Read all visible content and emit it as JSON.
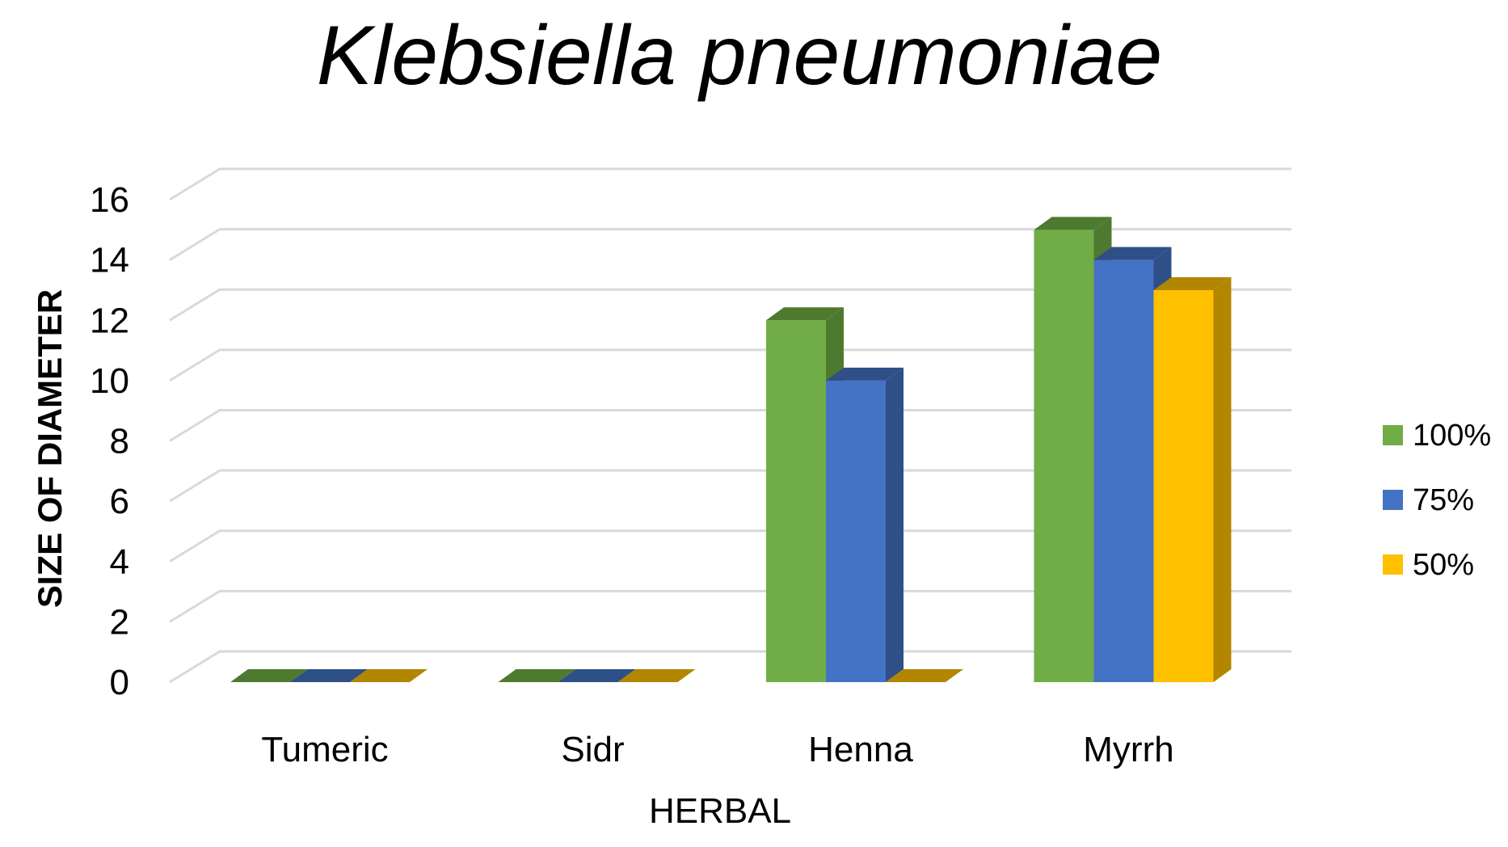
{
  "chart_data": {
    "type": "bar",
    "style": "3d-clustered-column",
    "title": "Klebsiella pneumoniae",
    "xlabel": "HERBAL",
    "ylabel": "SIZE OF DIAMETER",
    "categories": [
      "Tumeric",
      "Sidr",
      "Henna",
      "Myrrh"
    ],
    "ylim": [
      0,
      16
    ],
    "yticks": [
      "0",
      "2",
      "4",
      "6",
      "8",
      "10",
      "12",
      "14",
      "16"
    ],
    "grid": true,
    "legend_position": "right",
    "series": [
      {
        "name": "100%",
        "values": [
          0,
          0,
          12,
          15
        ],
        "color": "#70ad47",
        "side_color": "#4e7a30"
      },
      {
        "name": "75%",
        "values": [
          0,
          0,
          10,
          14
        ],
        "color": "#4472c4",
        "side_color": "#2f4f87"
      },
      {
        "name": "50%",
        "values": [
          0,
          0,
          0,
          13
        ],
        "color": "#ffc000",
        "side_color": "#b38600"
      }
    ]
  }
}
